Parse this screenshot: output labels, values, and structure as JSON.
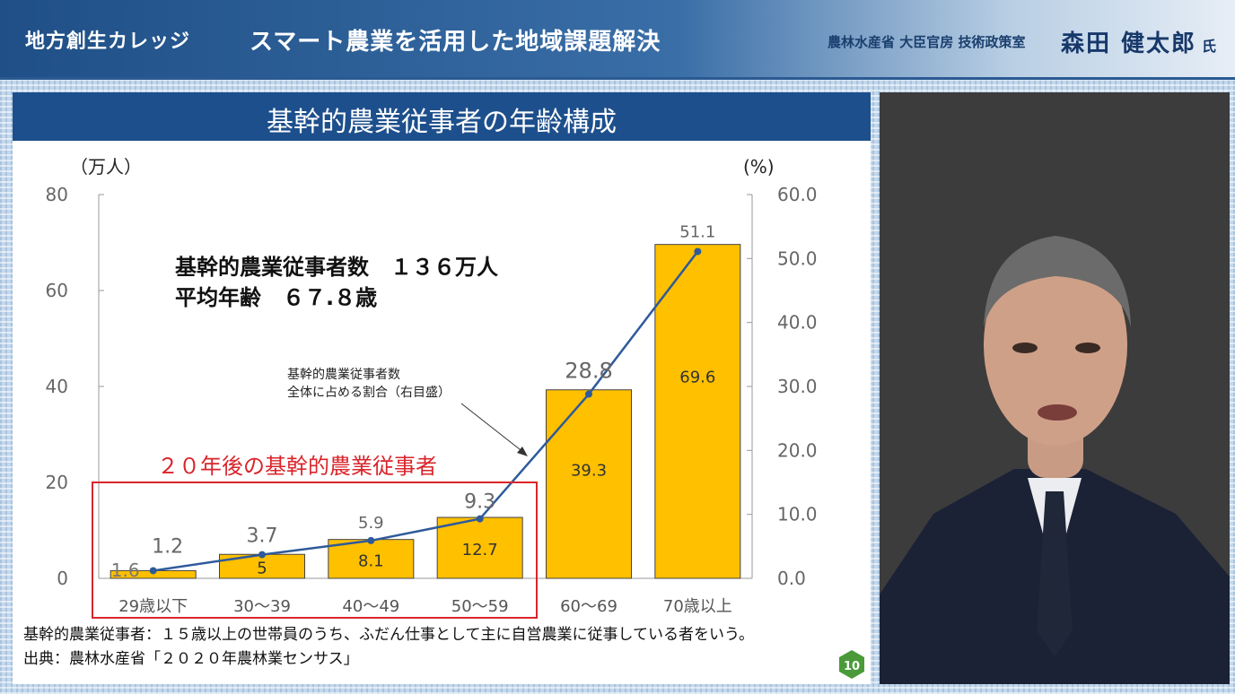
{
  "header": {
    "series": "地方創生カレッジ",
    "title": "スマート農業を活用した地域課題解決",
    "speaker_affiliation": "農林水産省 大臣官房 技術政策室",
    "speaker_name": "森田 健太郎",
    "speaker_honorific": "氏"
  },
  "slide": {
    "title": "基幹的農業従事者の年齢構成",
    "summary_line1": "基幹的農業従事者数　１３６万人",
    "summary_line2": "平均年齢　６７.８歳",
    "annotation_line1": "基幹的農業従事者数",
    "annotation_line2": "全体に占める割合（右目盛）",
    "highlight_label": "２０年後の基幹的農業従事者",
    "footnote": "基幹的農業従事者：１５歳以上の世帯員のうち、ふだん仕事として主に自営農業に従事している者をいう。",
    "source": "出典：農林水産省「２０２０年農林業センサス」",
    "page_number": "10"
  },
  "chart_data": {
    "type": "bar",
    "categories": [
      "29歳以下",
      "30～39",
      "40～49",
      "50～59",
      "60～69",
      "70歳以上"
    ],
    "left_axis_unit": "（万人）",
    "right_axis_unit": "(%)",
    "left_ticks": [
      "0",
      "20",
      "40",
      "60",
      "80"
    ],
    "right_ticks": [
      "0.0",
      "10.0",
      "20.0",
      "30.0",
      "40.0",
      "50.0",
      "60.0"
    ],
    "ylim": [
      0,
      80
    ],
    "y2lim": [
      0,
      60
    ],
    "bar_color": "#ffc000",
    "line_color": "#2e5a9a",
    "series": [
      {
        "values": [
          1.6,
          5,
          8.1,
          12.7,
          39.3,
          69.6
        ],
        "labels": [
          "1.6",
          "5",
          "8.1",
          "12.7",
          "39.3",
          "69.6"
        ]
      },
      {
        "values": [
          1.2,
          3.7,
          5.9,
          9.3,
          28.8,
          51.1
        ],
        "labels": [
          "1.2",
          "3.7",
          "5.9",
          "9.3",
          "28.8",
          "51.1"
        ]
      }
    ]
  }
}
